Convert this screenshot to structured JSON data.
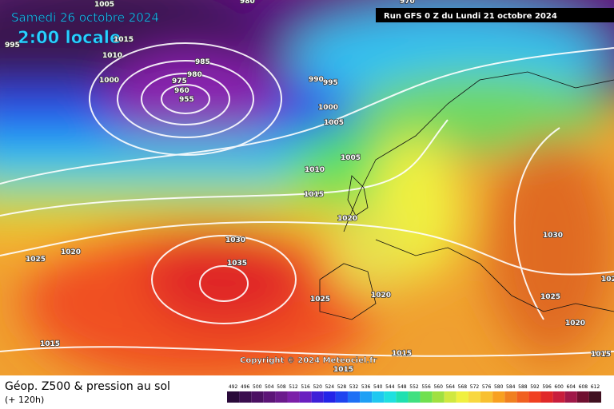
{
  "header": {
    "date": "Samedi 26 octobre 2024",
    "time": "2:00 locale",
    "run": "Run GFS 0 Z du Lundi 21 octobre 2024"
  },
  "copyright": "Copyright © 2024 Meteociel.fr",
  "footer": {
    "title": "Géop. Z500 & pression au sol",
    "lead": "(+ 120h)"
  },
  "legend": {
    "values": [
      492,
      496,
      500,
      504,
      508,
      512,
      516,
      520,
      524,
      528,
      532,
      536,
      540,
      544,
      548,
      552,
      556,
      560,
      564,
      568,
      572,
      576,
      580,
      584,
      588,
      592,
      596,
      600,
      604,
      608,
      612
    ],
    "colors": [
      "#2a0a3a",
      "#3a0d4e",
      "#4b1062",
      "#5c1477",
      "#6b1a8c",
      "#7c1fa8",
      "#6a1fc0",
      "#3d1fd8",
      "#2424e8",
      "#1f44f0",
      "#1f70f5",
      "#1fa0f5",
      "#20c8f0",
      "#20e0e0",
      "#20e0b0",
      "#40e080",
      "#70e050",
      "#a0e040",
      "#d0e840",
      "#f0f040",
      "#f8d840",
      "#f8c030",
      "#f8a020",
      "#f08020",
      "#f06020",
      "#f04020",
      "#e02828",
      "#c81e3c",
      "#a01848",
      "#701030",
      "#401020"
    ]
  },
  "isobar_labels": [
    980,
    970,
    1005,
    995,
    1015,
    1010,
    985,
    1000,
    980,
    975,
    960,
    955,
    990,
    995,
    1000,
    1005,
    1005,
    1010,
    1015,
    1020,
    1030,
    1035,
    1025,
    1020,
    1030,
    1025,
    1020,
    1025,
    1020,
    1015,
    1015,
    1015,
    1015,
    102
  ]
}
